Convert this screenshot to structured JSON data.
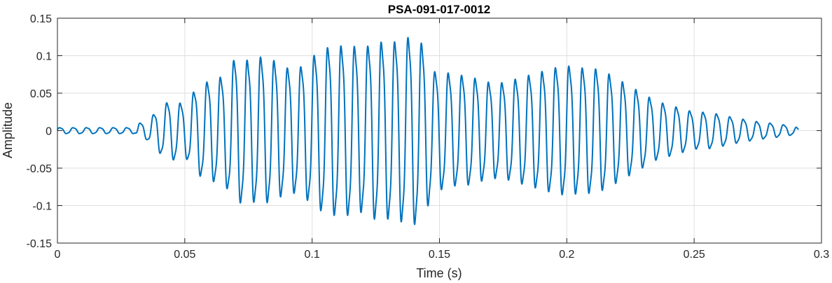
{
  "chart_data": {
    "type": "line",
    "title": "PSA-091-017-0012",
    "xlabel": "Time (s)",
    "ylabel": "Amplitude",
    "xlim": [
      0,
      0.3
    ],
    "ylim": [
      -0.15,
      0.15
    ],
    "x_ticks": [
      0,
      0.05,
      0.1,
      0.15,
      0.2,
      0.25,
      0.3
    ],
    "x_tick_labels": [
      "0",
      "0.05",
      "0.1",
      "0.15",
      "0.2",
      "0.25",
      "0.3"
    ],
    "y_ticks": [
      -0.15,
      -0.1,
      -0.05,
      0,
      0.05,
      0.1,
      0.15
    ],
    "y_tick_labels": [
      "-0.15",
      "-0.1",
      "-0.05",
      "0",
      "0.05",
      "0.1",
      "0.15"
    ],
    "grid": true,
    "line_color": "#0072BD",
    "series": [
      {
        "x": [
          0,
          0.0305,
          0.032,
          0.035,
          0.04,
          0.043,
          0.046,
          0.05,
          0.055,
          0.058,
          0.062,
          0.066,
          0.07,
          0.075,
          0.08,
          0.085,
          0.09,
          0.095,
          0.1,
          0.104,
          0.108,
          0.112,
          0.116,
          0.12,
          0.124,
          0.128,
          0.132,
          0.136,
          0.14,
          0.144,
          0.148,
          0.152,
          0.156,
          0.16,
          0.165,
          0.17,
          0.175,
          0.18,
          0.185,
          0.19,
          0.195,
          0.2,
          0.205,
          0.21,
          0.215,
          0.22,
          0.225,
          0.23,
          0.235,
          0.24,
          0.245,
          0.25,
          0.255,
          0.26,
          0.265,
          0.27,
          0.275,
          0.28,
          0.285,
          0.29,
          0.291
        ],
        "envelope": [
          0.004,
          0.004,
          0.01,
          0.012,
          0.03,
          0.038,
          0.04,
          0.035,
          0.06,
          0.065,
          0.07,
          0.075,
          0.1,
          0.095,
          0.1,
          0.095,
          0.085,
          0.085,
          0.1,
          0.11,
          0.115,
          0.115,
          0.115,
          0.11,
          0.12,
          0.12,
          0.12,
          0.125,
          0.128,
          0.115,
          0.08,
          0.08,
          0.075,
          0.075,
          0.07,
          0.065,
          0.065,
          0.07,
          0.075,
          0.08,
          0.085,
          0.088,
          0.085,
          0.085,
          0.08,
          0.07,
          0.06,
          0.05,
          0.04,
          0.035,
          0.03,
          0.025,
          0.025,
          0.022,
          0.018,
          0.015,
          0.012,
          0.01,
          0.008,
          0.005,
          0.002
        ],
        "frequency_hz": 190
      }
    ]
  }
}
